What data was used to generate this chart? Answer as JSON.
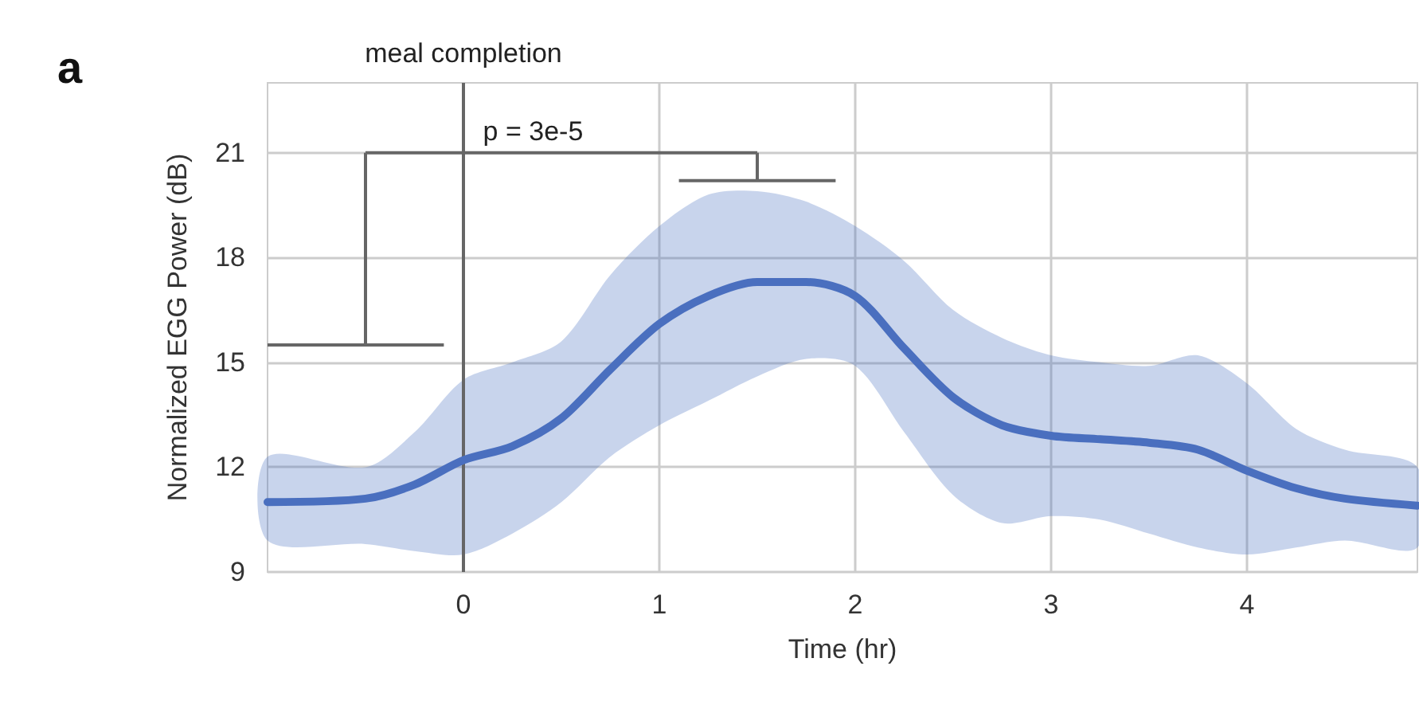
{
  "chart_data": {
    "type": "line",
    "xlabel": "Time (hr)",
    "ylabel": "Normalized EGG Power (dB)",
    "x": [
      -1,
      -0.5,
      -0.25,
      0,
      0.25,
      0.5,
      0.75,
      1,
      1.25,
      1.5,
      1.75,
      2,
      2.25,
      2.5,
      2.75,
      3,
      3.25,
      3.5,
      3.75,
      4,
      4.25,
      4.5,
      4.87
    ],
    "series": [
      {
        "color": "#4a6fbf",
        "values": [
          11.0,
          11.1,
          11.5,
          12.2,
          12.6,
          13.4,
          14.8,
          16.1,
          16.9,
          17.3,
          17.3,
          16.9,
          15.4,
          14.0,
          13.2,
          12.9,
          12.8,
          12.7,
          12.5,
          11.9,
          11.4,
          11.1,
          10.9
        ],
        "upper": [
          12.3,
          12.0,
          13.0,
          14.5,
          15.0,
          15.6,
          17.5,
          18.9,
          19.8,
          19.9,
          19.6,
          18.9,
          17.9,
          16.5,
          15.7,
          15.2,
          15.0,
          14.9,
          15.2,
          14.4,
          13.1,
          12.5,
          12.0
        ],
        "lower": [
          9.9,
          9.8,
          9.6,
          9.5,
          10.1,
          11.0,
          12.3,
          13.2,
          13.9,
          14.6,
          15.1,
          14.9,
          13.0,
          11.2,
          10.4,
          10.6,
          10.5,
          10.1,
          9.7,
          9.5,
          9.7,
          9.9,
          9.7
        ]
      }
    ],
    "xlim": [
      -1,
      4.87
    ],
    "xticks": [
      0,
      1,
      2,
      3,
      4
    ],
    "ylim": [
      9,
      23
    ],
    "yticks": [
      9,
      12,
      15,
      18,
      21
    ],
    "ref_lines": [
      {
        "axis": "x",
        "value": 0,
        "label": "meal completion",
        "color": "#666666"
      }
    ],
    "annotations": [
      "a",
      "p = 3e-5"
    ],
    "grid": true,
    "marker": "none",
    "line_style": "solid"
  }
}
